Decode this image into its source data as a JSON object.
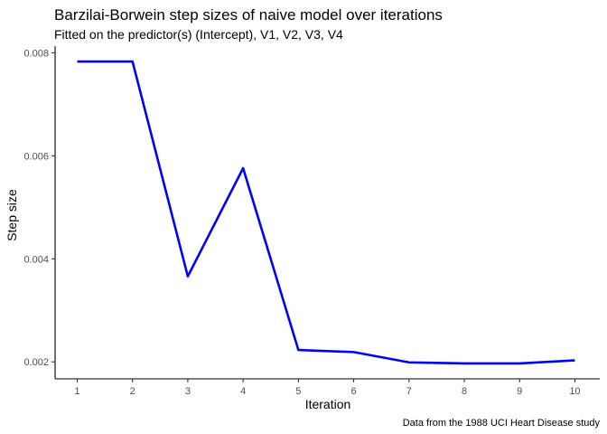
{
  "chart_data": {
    "type": "line",
    "title": "Barzilai-Borwein step sizes of naive model over iterations",
    "subtitle": "Fitted on the predictor(s) (Intercept), V1, V2, V3, V4",
    "caption": "Data from the 1988 UCI Heart Disease study",
    "xlabel": "Iteration",
    "ylabel": "Step size",
    "x": [
      1,
      2,
      3,
      4,
      5,
      6,
      7,
      8,
      9,
      10
    ],
    "series": [
      {
        "values": [
          0.00783,
          0.00783,
          0.00366,
          0.00576,
          0.00223,
          0.00219,
          0.00199,
          0.00197,
          0.00197,
          0.00203
        ]
      }
    ],
    "xlim": [
      0.6,
      10.45
    ],
    "ylim": [
      0.00167,
      0.00813
    ],
    "x_ticks": [
      1,
      2,
      3,
      4,
      5,
      6,
      7,
      8,
      9,
      10
    ],
    "y_ticks": [
      0.002,
      0.004,
      0.006,
      0.008
    ],
    "y_tick_labels": [
      "0.002",
      "0.004",
      "0.006",
      "0.008"
    ],
    "line_color": "#0000FF",
    "grid": false,
    "legend": "none"
  }
}
